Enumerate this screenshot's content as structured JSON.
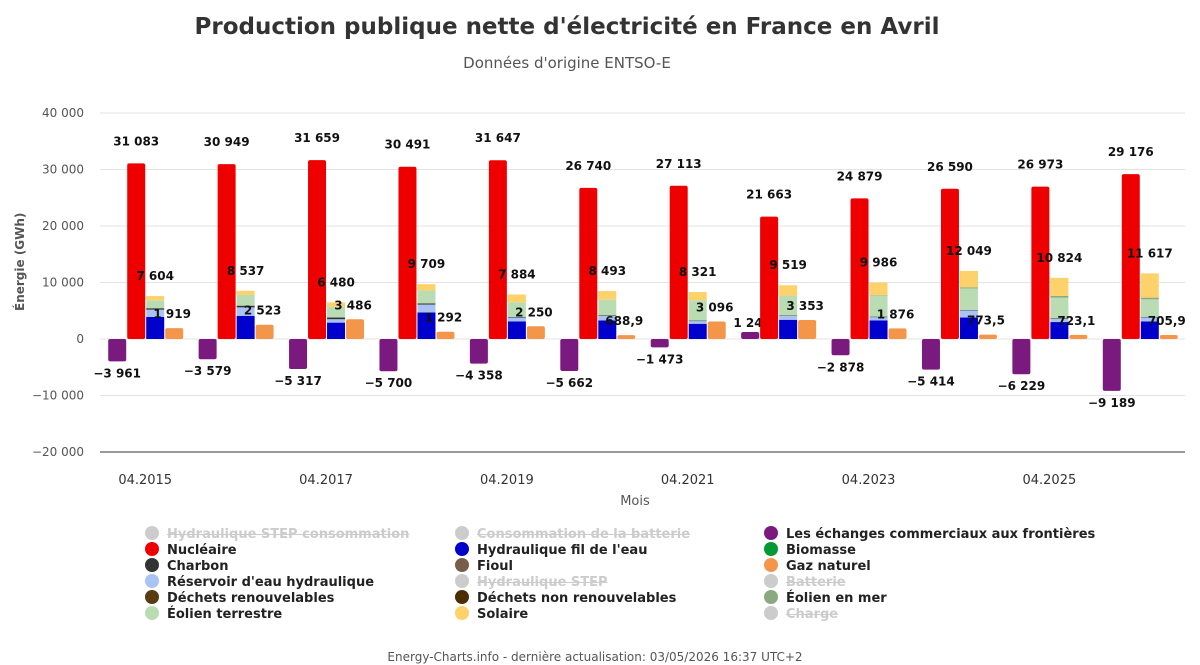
{
  "chart_data": {
    "type": "bar",
    "title": "Production publique nette d'électricité en France en Avril",
    "subtitle": "Données d'origine ENTSO-E",
    "xlabel": "Mois",
    "ylabel": "Énergie (GWh)",
    "ylim": [
      -20000,
      40000
    ],
    "yticks": [
      "40 000",
      "30 000",
      "20 000",
      "10 000",
      "0",
      "−10 000",
      "−20 000"
    ],
    "ytick_values": [
      40000,
      30000,
      20000,
      10000,
      0,
      -10000,
      -20000
    ],
    "categories": [
      "04.2015",
      "04.2016",
      "04.2017",
      "04.2018",
      "04.2019",
      "04.2020",
      "04.2021",
      "04.2022",
      "04.2023",
      "04.2024",
      "04.2025",
      "04.2026"
    ],
    "x_tick_labels": [
      "04.2015",
      "04.2017",
      "04.2019",
      "04.2021",
      "04.2023",
      "04.2025"
    ],
    "legend_placement": "bottom",
    "grid": true,
    "series": [
      {
        "name": "Les échanges commerciaux aux frontières",
        "color": "#7a1a7f",
        "values": [
          -3961,
          -3579,
          -5317,
          -5700,
          -4358,
          -5662,
          -1473,
          1247,
          -2878,
          -5414,
          -6229,
          -9189
        ],
        "labels": [
          "−3 961",
          "−3 579",
          "−5 317",
          "−5 700",
          "−4 358",
          "−5 662",
          "−1 473",
          "1 247",
          "−2 878",
          "−5 414",
          "−6 229",
          "−9 189"
        ]
      },
      {
        "name": "Nucléaire",
        "color": "#ee0000",
        "values": [
          31083,
          30949,
          31659,
          30491,
          31647,
          26740,
          27113,
          21663,
          24879,
          26590,
          26973,
          29176
        ],
        "labels": [
          "31 083",
          "30 949",
          "31 659",
          "30 491",
          "31 647",
          "26 740",
          "27 113",
          "21 663",
          "24 879",
          "26 590",
          "26 973",
          "29 176"
        ]
      },
      {
        "name": "Renouvelables (empilé)",
        "values": [
          7604,
          8537,
          6480,
          9709,
          7884,
          8493,
          8321,
          9519,
          9986,
          12049,
          10824,
          11617
        ],
        "labels": [
          "7 604",
          "8 537",
          "6 480",
          "9 709",
          "7 884",
          "8 493",
          "8 321",
          "9 519",
          "9 986",
          "12 049",
          "10 824",
          "11 617"
        ]
      },
      {
        "name": "Gaz naturel",
        "color": "#f4964a",
        "values": [
          1919,
          2523,
          3486,
          1292,
          2250,
          688.9,
          3096,
          3353,
          1876,
          773.5,
          723.1,
          705.9
        ],
        "labels": [
          "1 919",
          "2 523",
          "3 486",
          "1 292",
          "2 250",
          "688,9",
          "3 096",
          "3 353",
          "1 876",
          "773,5",
          "723,1",
          "705,9"
        ]
      }
    ],
    "stack_components": {
      "Hydraulique fil de l'eau": {
        "color": "#0000cc",
        "values": [
          3900,
          4100,
          2900,
          4700,
          3100,
          3300,
          2700,
          3400,
          3300,
          3800,
          3000,
          3100
        ]
      },
      "Réservoir d'eau hydraulique": {
        "color": "#a9c3f5",
        "values": [
          1300,
          1500,
          600,
          1400,
          700,
          800,
          500,
          700,
          600,
          1300,
          600,
          800
        ]
      },
      "Charbon": {
        "color": "#333333",
        "values": [
          250,
          300,
          300,
          200,
          100,
          60,
          60,
          80,
          60,
          50,
          30,
          20
        ]
      },
      "Éolien terrestre": {
        "color": "#b9dcb3",
        "values": [
          1400,
          1900,
          1900,
          2300,
          2600,
          2800,
          3600,
          3500,
          3700,
          3800,
          3700,
          3100
        ]
      },
      "Éolien en mer": {
        "color": "#8aa97f",
        "values": [
          0,
          0,
          0,
          0,
          0,
          0,
          0,
          0,
          100,
          200,
          300,
          300
        ]
      },
      "Solaire": {
        "color": "#fdd26b",
        "values": [
          750,
          737,
          780,
          1109,
          1384,
          1533,
          1461,
          1839,
          2226,
          2899,
          3194,
          4297
        ]
      }
    }
  },
  "legend": {
    "items": [
      {
        "label": "Hydraulique STEP consommation",
        "color": "#cccccc",
        "hidden": true
      },
      {
        "label": "Consommation de la batterie",
        "color": "#cccccc",
        "hidden": true
      },
      {
        "label": "Les échanges commerciaux aux frontières",
        "color": "#7a1a7f",
        "hidden": false
      },
      {
        "label": "Nucléaire",
        "color": "#ee0000",
        "hidden": false
      },
      {
        "label": "Hydraulique fil de l'eau",
        "color": "#0000cc",
        "hidden": false
      },
      {
        "label": "Biomasse",
        "color": "#009933",
        "hidden": false
      },
      {
        "label": "Charbon",
        "color": "#333333",
        "hidden": false
      },
      {
        "label": "Fioul",
        "color": "#7a5c4a",
        "hidden": false
      },
      {
        "label": "Gaz naturel",
        "color": "#f4964a",
        "hidden": false
      },
      {
        "label": "Réservoir d'eau hydraulique",
        "color": "#a9c3f5",
        "hidden": false
      },
      {
        "label": "Hydraulique STEP",
        "color": "#cccccc",
        "hidden": true
      },
      {
        "label": "Batterie",
        "color": "#cccccc",
        "hidden": true
      },
      {
        "label": "Déchets renouvelables",
        "color": "#5a3a10",
        "hidden": false
      },
      {
        "label": "Déchets non renouvelables",
        "color": "#4a2d00",
        "hidden": false
      },
      {
        "label": "Éolien en mer",
        "color": "#8aa97f",
        "hidden": false
      },
      {
        "label": "Éolien terrestre",
        "color": "#b9dcb3",
        "hidden": false
      },
      {
        "label": "Solaire",
        "color": "#fdd26b",
        "hidden": false
      },
      {
        "label": "Charge",
        "color": "#cccccc",
        "hidden": true
      }
    ]
  },
  "footer": {
    "text": "Energy-Charts.info - dernière actualisation: 03/05/2026 16:37 UTC+2"
  }
}
